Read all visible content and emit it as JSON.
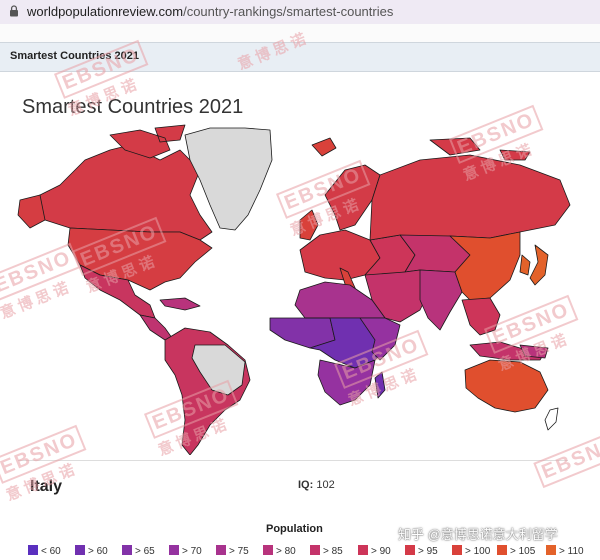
{
  "browser": {
    "url_host": "worldpopulationreview.com",
    "url_path": "/country-rankings/smartest-countries"
  },
  "tab": {
    "title": "Smartest Countries 2021"
  },
  "map": {
    "title": "Smartest Countries 2021"
  },
  "selection": {
    "country": "Italy",
    "iq_label": "IQ:",
    "iq_value": "102"
  },
  "legend": {
    "title": "Population",
    "items": [
      {
        "label": "< 60",
        "color": "#5a2fbf"
      },
      {
        "label": "> 60",
        "color": "#7030b0"
      },
      {
        "label": "> 65",
        "color": "#8232a8"
      },
      {
        "label": "> 70",
        "color": "#9532a0"
      },
      {
        "label": "> 75",
        "color": "#a8338e"
      },
      {
        "label": "> 80",
        "color": "#b8337c"
      },
      {
        "label": "> 85",
        "color": "#c4336a"
      },
      {
        "label": "> 90",
        "color": "#cd3559"
      },
      {
        "label": "> 95",
        "color": "#d43a48"
      },
      {
        "label": "> 100",
        "color": "#d9413a"
      },
      {
        "label": "> 105",
        "color": "#e04f2e"
      },
      {
        "label": "> 110",
        "color": "#e3622a"
      }
    ]
  },
  "watermark": {
    "brand": "EBSNO",
    "cn": "意博思诺",
    "footer": "知乎 @意博思诺意大利留学"
  }
}
